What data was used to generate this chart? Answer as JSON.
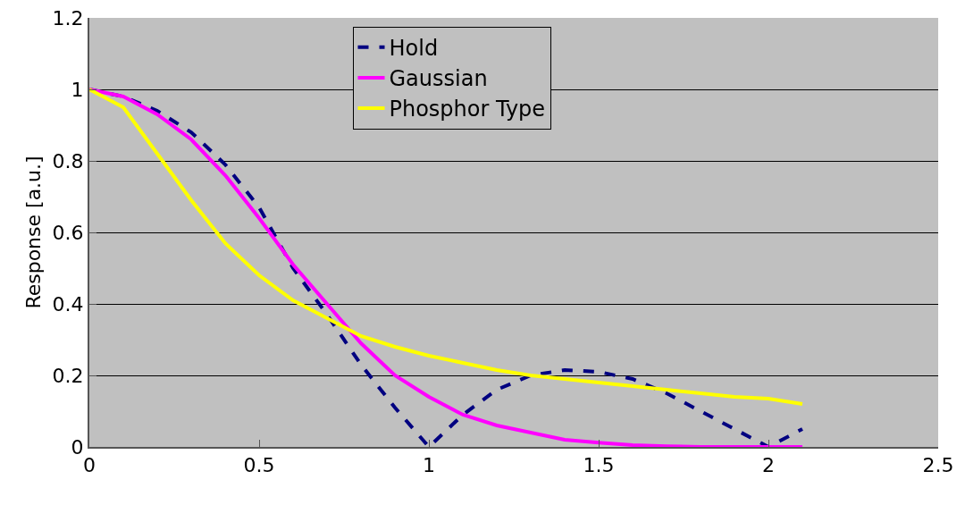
{
  "chart_data": {
    "type": "line",
    "ylabel": "Response [a.u.]",
    "xlim": [
      0,
      2.5
    ],
    "xticks": [
      0,
      0.5,
      1,
      1.5,
      2,
      2.5
    ],
    "ylim": [
      0,
      1.2
    ],
    "yticks": [
      0,
      0.2,
      0.4,
      0.6,
      0.8,
      1,
      1.2
    ],
    "grid": "y",
    "legend": "top",
    "marker": "none",
    "x": [
      0,
      0.1,
      0.2,
      0.3,
      0.4,
      0.5,
      0.6,
      0.7,
      0.8,
      0.9,
      1,
      1.1,
      1.2,
      1.3,
      1.4,
      1.5,
      1.6,
      1.7,
      1.8,
      1.9,
      2,
      2.1
    ],
    "series": [
      {
        "name": "Hold",
        "color": "#000080",
        "line_style": "dashed",
        "values": [
          1,
          0.98,
          0.94,
          0.88,
          0.79,
          0.67,
          0.5,
          0.37,
          0.23,
          0.11,
          0,
          0.09,
          0.16,
          0.2,
          0.215,
          0.21,
          0.19,
          0.15,
          0.1,
          0.05,
          0,
          0.05
        ]
      },
      {
        "name": "Gaussian",
        "color": "#ff00ff",
        "line_style": "solid",
        "values": [
          1,
          0.98,
          0.93,
          0.86,
          0.76,
          0.64,
          0.51,
          0.4,
          0.29,
          0.2,
          0.14,
          0.09,
          0.06,
          0.04,
          0.02,
          0.012,
          0.005,
          0.002,
          0,
          0,
          0,
          0
        ]
      },
      {
        "name": "Phosphor Type",
        "color": "#ffff00",
        "line_style": "solid",
        "values": [
          1,
          0.95,
          0.82,
          0.69,
          0.57,
          0.48,
          0.41,
          0.36,
          0.31,
          0.28,
          0.255,
          0.235,
          0.215,
          0.2,
          0.19,
          0.18,
          0.17,
          0.16,
          0.15,
          0.14,
          0.135,
          0.12
        ]
      }
    ]
  }
}
